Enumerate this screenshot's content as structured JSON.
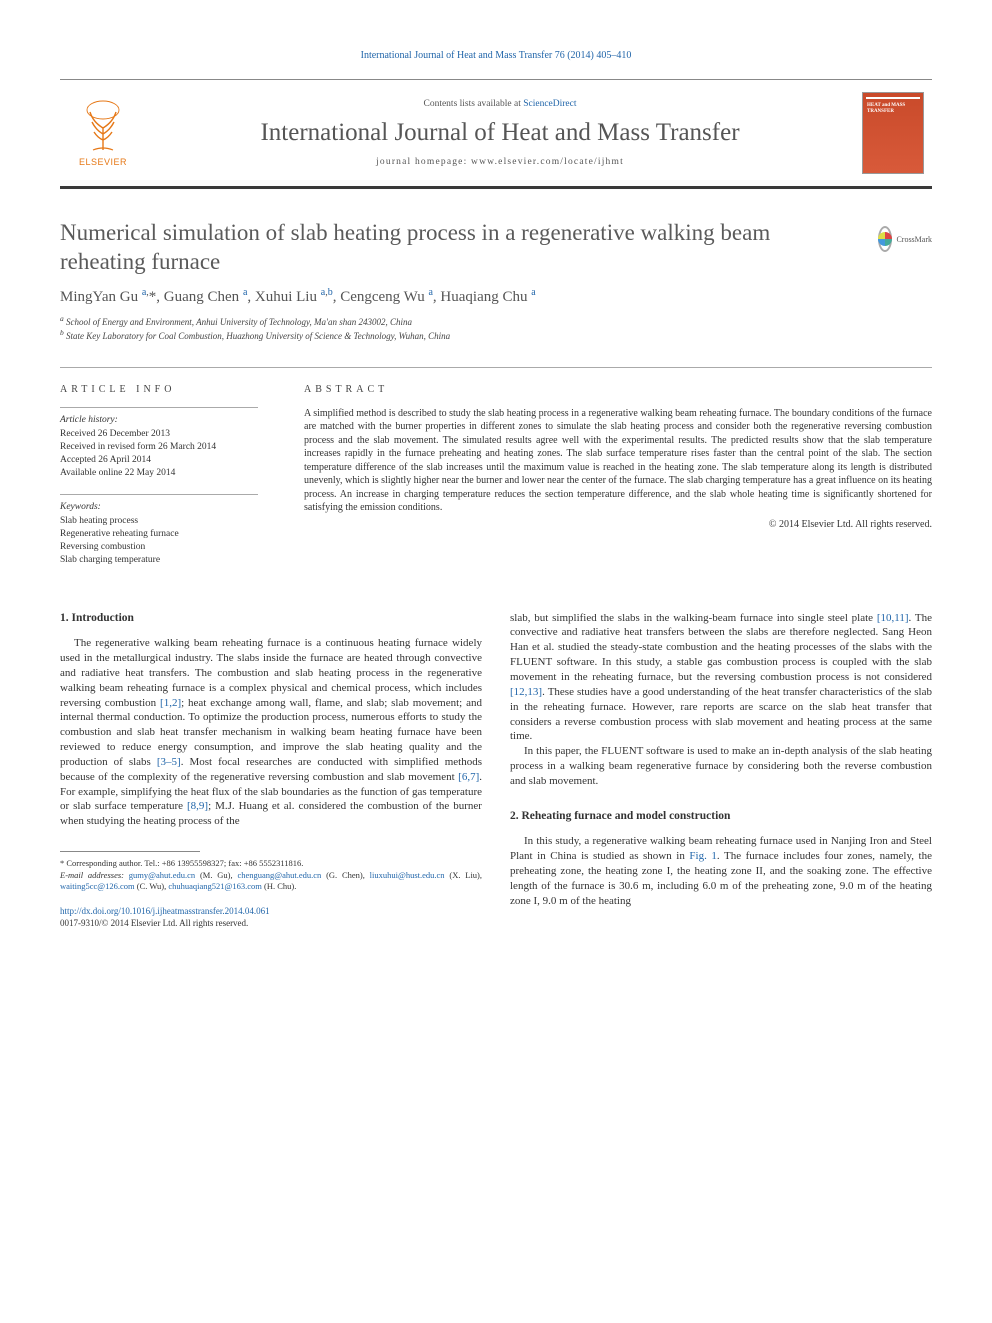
{
  "header": {
    "citation": "International Journal of Heat and Mass Transfer 76 (2014) 405–410"
  },
  "banner": {
    "publisher": "ELSEVIER",
    "contents_prefix": "Contents lists available at ",
    "contents_link": "ScienceDirect",
    "journal_name": "International Journal of Heat and Mass Transfer",
    "homepage_prefix": "journal homepage: ",
    "homepage_url": "www.elsevier.com/locate/ijhmt",
    "cover_label": "HEAT and MASS TRANSFER"
  },
  "crossmark_label": "CrossMark",
  "title": "Numerical simulation of slab heating process in a regenerative walking beam reheating furnace",
  "authors_html": "MingYan Gu <sup><a>a</a>,</sup>*, Guang Chen <sup><a>a</a></sup>, Xuhui Liu <sup><a>a</a>,<a>b</a></sup>, Cengceng Wu <sup><a>a</a></sup>, Huaqiang Chu <sup><a>a</a></sup>",
  "affiliations": [
    "a School of Energy and Environment, Anhui University of Technology, Ma'an shan 243002, China",
    "b State Key Laboratory for Coal Combustion, Huazhong University of Science & Technology, Wuhan, China"
  ],
  "article_info": {
    "heading": "ARTICLE INFO",
    "history_label": "Article history:",
    "history": [
      "Received 26 December 2013",
      "Received in revised form 26 March 2014",
      "Accepted 26 April 2014",
      "Available online 22 May 2014"
    ],
    "keywords_label": "Keywords:",
    "keywords": [
      "Slab heating process",
      "Regenerative reheating furnace",
      "Reversing combustion",
      "Slab charging temperature"
    ]
  },
  "abstract": {
    "heading": "ABSTRACT",
    "text": "A simplified method is described to study the slab heating process in a regenerative walking beam reheating furnace. The boundary conditions of the furnace are matched with the burner properties in different zones to simulate the slab heating process and consider both the regenerative reversing combustion process and the slab movement. The simulated results agree well with the experimental results. The predicted results show that the slab temperature increases rapidly in the furnace preheating and heating zones. The slab surface temperature rises faster than the central point of the slab. The section temperature difference of the slab increases until the maximum value is reached in the heating zone. The slab temperature along its length is distributed unevenly, which is slightly higher near the burner and lower near the center of the furnace. The slab charging temperature has a great influence on its heating process. An increase in charging temperature reduces the section temperature difference, and the slab whole heating time is significantly shortened for satisfying the emission conditions.",
    "copyright": "© 2014 Elsevier Ltd. All rights reserved."
  },
  "body": {
    "left": {
      "h1": "1. Introduction",
      "p1": "The regenerative walking beam reheating furnace is a continuous heating furnace widely used in the metallurgical industry. The slabs inside the furnace are heated through convective and radiative heat transfers. The combustion and slab heating process in the regenerative walking beam reheating furnace is a complex physical and chemical process, which includes reversing combustion [1,2]; heat exchange among wall, flame, and slab; slab movement; and internal thermal conduction. To optimize the production process, numerous efforts to study the combustion and slab heat transfer mechanism in walking beam heating furnace have been reviewed to reduce energy consumption, and improve the slab heating quality and the production of slabs [3–5]. Most focal researches are conducted with simplified methods because of the complexity of the regenerative reversing combustion and slab movement [6,7]. For example, simplifying the heat flux of the slab boundaries as the function of gas temperature or slab surface temperature [8,9]; M.J. Huang et al. considered the combustion of the burner when studying the heating process of the"
    },
    "right": {
      "p1": "slab, but simplified the slabs in the walking-beam furnace into single steel plate [10,11]. The convective and radiative heat transfers between the slabs are therefore neglected. Sang Heon Han et al. studied the steady-state combustion and the heating processes of the slabs with the FLUENT software. In this study, a stable gas combustion process is coupled with the slab movement in the reheating furnace, but the reversing combustion process is not considered [12,13]. These studies have a good understanding of the heat transfer characteristics of the slab in the reheating furnace. However, rare reports are scarce on the slab heat transfer that considers a reverse combustion process with slab movement and heating process at the same time.",
      "p2": "In this paper, the FLUENT software is used to make an in-depth analysis of the slab heating process in a walking beam regenerative furnace by considering both the reverse combustion and slab movement.",
      "h2": "2. Reheating furnace and model construction",
      "p3": "In this study, a regenerative walking beam reheating furnace used in Nanjing Iron and Steel Plant in China is studied as shown in Fig. 1. The furnace includes four zones, namely, the preheating zone, the heating zone I, the heating zone II, and the soaking zone. The effective length of the furnace is 30.6 m, including 6.0 m of the preheating zone, 9.0 m of the heating zone I, 9.0 m of the heating"
    }
  },
  "footnotes": {
    "corr": "* Corresponding author. Tel.: +86 13955598327; fax: +86 5552311816.",
    "emails_label": "E-mail addresses:",
    "emails_html": "gumy@ahut.edu.cn (M. Gu), chenguang@ahut.edu.cn (G. Chen), liuxuhui@hust.edu.cn (X. Liu), waiting5cc@126.com (C. Wu), chuhuaqiang521@163.com (H. Chu)."
  },
  "doi": {
    "url": "http://dx.doi.org/10.1016/j.ijheatmasstransfer.2014.04.061",
    "issn": "0017-9310/© 2014 Elsevier Ltd. All rights reserved."
  },
  "colors": {
    "link": "#2266aa",
    "elsevier_orange": "#e67817",
    "rule": "#888",
    "text_muted": "#555"
  }
}
